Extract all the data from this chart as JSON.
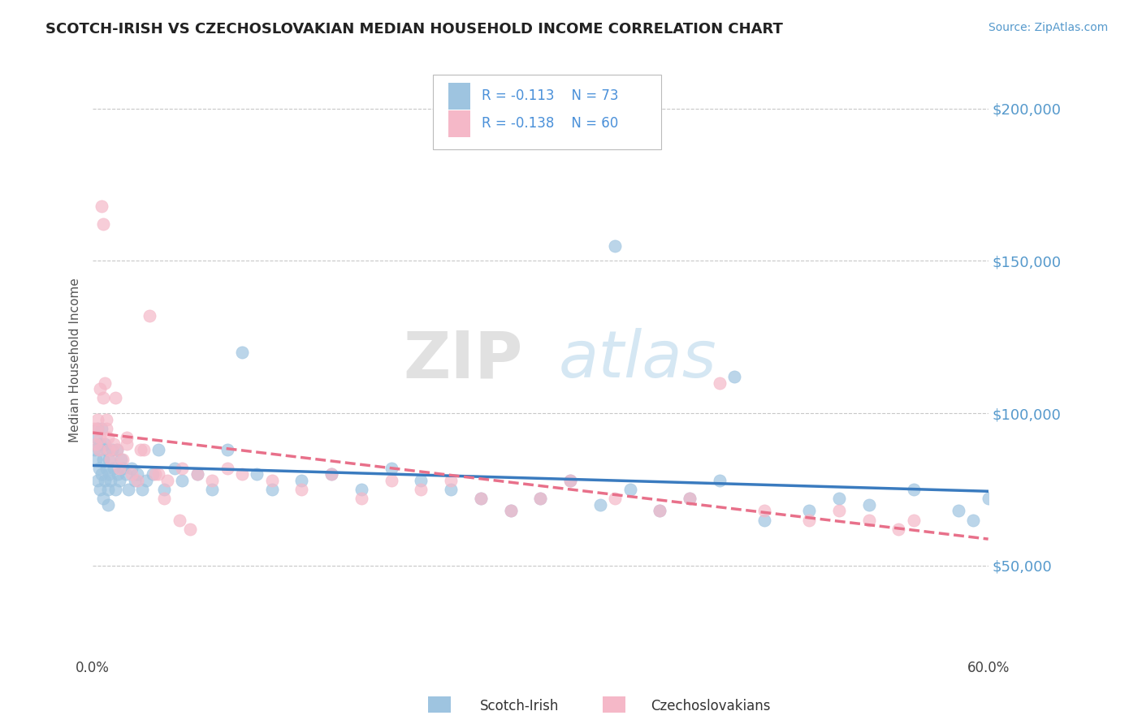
{
  "title": "SCOTCH-IRISH VS CZECHOSLOVAKIAN MEDIAN HOUSEHOLD INCOME CORRELATION CHART",
  "source_text": "Source: ZipAtlas.com",
  "ylabel": "Median Household Income",
  "xlim": [
    0.0,
    0.6
  ],
  "ylim": [
    20000,
    215000
  ],
  "xticks": [
    0.0,
    0.1,
    0.2,
    0.3,
    0.4,
    0.5,
    0.6
  ],
  "xticklabels": [
    "0.0%",
    "",
    "",
    "",
    "",
    "",
    "60.0%"
  ],
  "yticks": [
    50000,
    100000,
    150000,
    200000
  ],
  "yticklabels": [
    "$50,000",
    "$100,000",
    "$150,000",
    "$200,000"
  ],
  "scotch_irish_color": "#9ec4e0",
  "czech_color": "#f5b8c8",
  "scotch_irish_line_color": "#3a7bbf",
  "czech_line_color": "#e8708a",
  "legend_text_color": "#4a90d9",
  "legend_label1": "Scotch-Irish",
  "legend_label2": "Czechoslovakians",
  "watermark": "ZIPatlas",
  "background_color": "#ffffff",
  "grid_color": "#c8c8c8",
  "title_color": "#333333",
  "axis_label_color": "#5599cc",
  "scotch_irish_x": [
    0.001,
    0.002,
    0.002,
    0.003,
    0.003,
    0.004,
    0.004,
    0.005,
    0.005,
    0.006,
    0.006,
    0.007,
    0.007,
    0.008,
    0.008,
    0.009,
    0.009,
    0.01,
    0.01,
    0.011,
    0.011,
    0.012,
    0.013,
    0.014,
    0.015,
    0.016,
    0.017,
    0.018,
    0.019,
    0.02,
    0.022,
    0.024,
    0.026,
    0.028,
    0.03,
    0.033,
    0.036,
    0.04,
    0.044,
    0.048,
    0.055,
    0.06,
    0.07,
    0.08,
    0.09,
    0.1,
    0.11,
    0.12,
    0.14,
    0.16,
    0.18,
    0.2,
    0.22,
    0.24,
    0.26,
    0.28,
    0.3,
    0.32,
    0.34,
    0.36,
    0.38,
    0.4,
    0.42,
    0.45,
    0.48,
    0.5,
    0.52,
    0.55,
    0.58,
    0.59,
    0.6,
    0.35,
    0.43
  ],
  "scotch_irish_y": [
    88000,
    92000,
    85000,
    95000,
    78000,
    88000,
    82000,
    90000,
    75000,
    95000,
    80000,
    85000,
    72000,
    78000,
    90000,
    82000,
    88000,
    75000,
    70000,
    85000,
    80000,
    78000,
    88000,
    82000,
    75000,
    88000,
    80000,
    78000,
    85000,
    82000,
    80000,
    75000,
    82000,
    78000,
    80000,
    75000,
    78000,
    80000,
    88000,
    75000,
    82000,
    78000,
    80000,
    75000,
    88000,
    120000,
    80000,
    75000,
    78000,
    80000,
    75000,
    82000,
    78000,
    75000,
    72000,
    68000,
    72000,
    78000,
    70000,
    75000,
    68000,
    72000,
    78000,
    65000,
    68000,
    72000,
    70000,
    75000,
    68000,
    65000,
    72000,
    155000,
    112000
  ],
  "czech_x": [
    0.001,
    0.002,
    0.003,
    0.004,
    0.005,
    0.006,
    0.007,
    0.008,
    0.009,
    0.01,
    0.011,
    0.012,
    0.014,
    0.016,
    0.018,
    0.02,
    0.023,
    0.026,
    0.03,
    0.034,
    0.038,
    0.044,
    0.05,
    0.06,
    0.07,
    0.08,
    0.09,
    0.1,
    0.12,
    0.14,
    0.16,
    0.18,
    0.2,
    0.22,
    0.24,
    0.26,
    0.28,
    0.3,
    0.32,
    0.35,
    0.38,
    0.4,
    0.42,
    0.45,
    0.48,
    0.5,
    0.52,
    0.54,
    0.55,
    0.003,
    0.005,
    0.007,
    0.009,
    0.015,
    0.023,
    0.032,
    0.042,
    0.048,
    0.058,
    0.065
  ],
  "czech_y": [
    95000,
    90000,
    95000,
    88000,
    92000,
    168000,
    162000,
    110000,
    95000,
    92000,
    88000,
    85000,
    90000,
    88000,
    82000,
    85000,
    92000,
    80000,
    78000,
    88000,
    132000,
    80000,
    78000,
    82000,
    80000,
    78000,
    82000,
    80000,
    78000,
    75000,
    80000,
    72000,
    78000,
    75000,
    78000,
    72000,
    68000,
    72000,
    78000,
    72000,
    68000,
    72000,
    110000,
    68000,
    65000,
    68000,
    65000,
    62000,
    65000,
    98000,
    108000,
    105000,
    98000,
    105000,
    90000,
    88000,
    80000,
    72000,
    65000,
    62000
  ]
}
